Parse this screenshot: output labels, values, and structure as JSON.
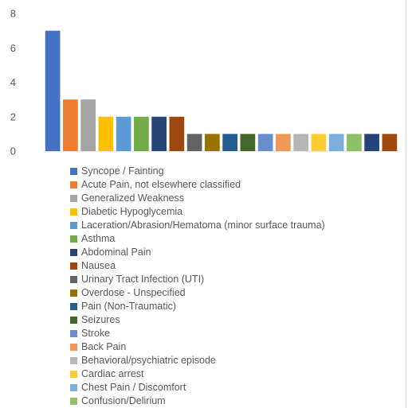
{
  "chart_data": {
    "type": "bar",
    "title": "",
    "xlabel": "",
    "ylabel": "",
    "ylim": [
      0,
      8
    ],
    "y_ticks": [
      "0",
      "2",
      "4",
      "6",
      "8"
    ],
    "grid": false,
    "legend_position": "bottom",
    "categories": [
      "Syncope / Fainting",
      "Acute Pain, not elsewhere classified",
      "Generalized Weakness",
      "Diabetic Hypoglycemia",
      "Laceration/Abrasion/Hematoma (minor surface trauma)",
      "Asthma",
      "Abdominal Pain",
      "Nausea",
      "Urinary Tract Infection (UTI)",
      "Overdose - Unspecified",
      "Pain (Non-Traumatic)",
      "Seizures",
      "Stroke",
      "Back Pain",
      "Behavioral/psychiatric episode",
      "Cardiac arrest",
      "Chest Pain / Discomfort",
      "Confusion/Delirium",
      "",
      ""
    ],
    "values": [
      7,
      3,
      3,
      2,
      2,
      2,
      2,
      2,
      1,
      1,
      1,
      1,
      1,
      1,
      1,
      1,
      1,
      1,
      1,
      1
    ],
    "colors": [
      "#4472c4",
      "#ed7d31",
      "#a5a5a5",
      "#ffc000",
      "#5b9bd5",
      "#70ad47",
      "#264478",
      "#9e480e",
      "#636363",
      "#997300",
      "#255e91",
      "#43682b",
      "#698ed0",
      "#f1975a",
      "#b7b7b7",
      "#ffcd33",
      "#7cafdd",
      "#8cc168",
      "#264478",
      "#9e480e"
    ]
  }
}
